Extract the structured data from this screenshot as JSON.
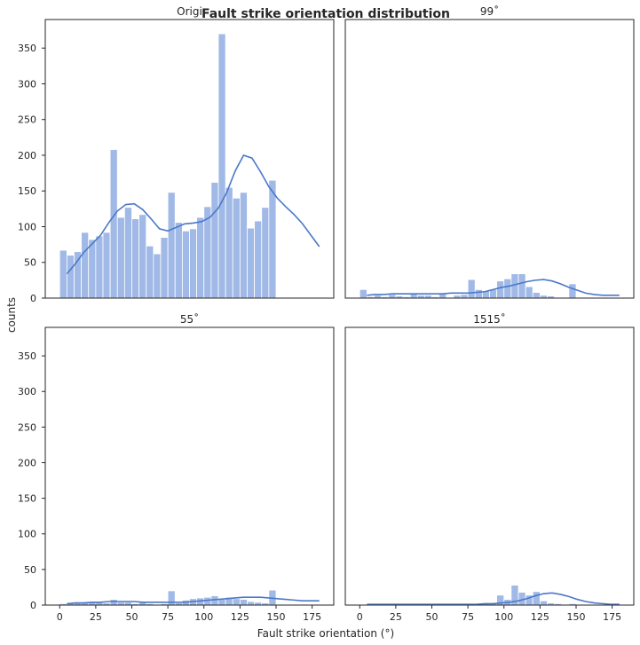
{
  "chart_data": {
    "type": "bar",
    "title": "Fault strike orientation distribution",
    "xlabel": "Fault strike orientation (°)",
    "ylabel": "counts",
    "xlim": [
      -10,
      190
    ],
    "ylim": [
      0,
      390
    ],
    "xticks": [
      0,
      25,
      50,
      75,
      100,
      125,
      150,
      175
    ],
    "yticks": [
      0,
      50,
      100,
      150,
      200,
      250,
      300,
      350
    ],
    "bin_start": 0,
    "bin_width": 5,
    "bar_color": "#a1b9e6",
    "kde_color": "#4a78c9",
    "grid": false,
    "panels": [
      {
        "title": "Origi",
        "values": [
          67,
          60,
          65,
          92,
          82,
          87,
          92,
          208,
          113,
          127,
          111,
          117,
          73,
          62,
          85,
          148,
          106,
          94,
          97,
          113,
          128,
          162,
          370,
          155,
          140,
          148,
          98,
          108,
          127,
          165
        ],
        "kde": [
          34,
          48,
          64,
          76,
          88,
          106,
          122,
          131,
          132,
          124,
          111,
          97,
          94,
          99,
          104,
          105,
          107,
          113,
          126,
          148,
          178,
          200,
          196,
          177,
          156,
          140,
          128,
          117,
          104,
          88,
          72
        ]
      },
      {
        "title": "99˚",
        "values": [
          12,
          2,
          4,
          2,
          5,
          3,
          2,
          6,
          4,
          4,
          2,
          6,
          1,
          4,
          5,
          26,
          12,
          10,
          12,
          24,
          27,
          34,
          34,
          16,
          8,
          4,
          3,
          1,
          0,
          20
        ],
        "kde": [
          4,
          5,
          5,
          6,
          6,
          6,
          6,
          6,
          6,
          6,
          7,
          7,
          7,
          8,
          9,
          12,
          15,
          17,
          20,
          23,
          25,
          26,
          24,
          20,
          15,
          11,
          7,
          5,
          4,
          4,
          4
        ]
      },
      {
        "title": "55˚",
        "values": [
          2,
          3,
          3,
          4,
          4,
          5,
          3,
          8,
          4,
          4,
          2,
          4,
          2,
          1,
          2,
          20,
          3,
          7,
          9,
          10,
          11,
          13,
          8,
          11,
          9,
          8,
          5,
          4,
          3,
          21
        ],
        "kde": [
          2,
          3,
          3,
          4,
          4,
          5,
          5,
          5,
          5,
          4,
          4,
          4,
          4,
          4,
          4,
          5,
          6,
          7,
          8,
          9,
          10,
          11,
          11,
          11,
          10,
          9,
          8,
          7,
          6,
          6,
          6
        ]
      },
      {
        "title": "1515˚",
        "values": [
          0,
          0,
          2,
          1,
          1,
          1,
          1,
          1,
          0,
          1,
          1,
          1,
          0,
          0,
          0,
          1,
          2,
          3,
          3,
          14,
          8,
          28,
          18,
          14,
          19,
          6,
          3,
          2,
          1,
          2
        ],
        "kde": [
          1,
          1,
          1,
          1,
          1,
          1,
          1,
          1,
          1,
          1,
          1,
          1,
          1,
          1,
          2,
          2,
          3,
          4,
          6,
          9,
          13,
          16,
          17,
          15,
          12,
          8,
          5,
          3,
          2,
          1,
          1
        ]
      }
    ]
  }
}
